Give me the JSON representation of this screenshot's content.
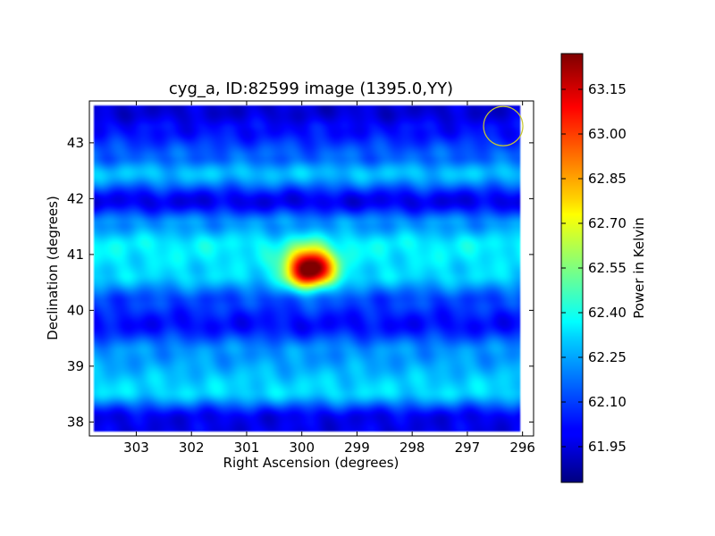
{
  "chart_data": {
    "type": "heatmap",
    "title": "cyg_a, ID:82599 image (1395.0,YY)",
    "xlabel": "Right Ascension (degrees)",
    "ylabel": "Declination (degrees)",
    "x_inverted": true,
    "xlim": [
      303.85,
      295.8
    ],
    "ylim": [
      37.75,
      43.75
    ],
    "x_ticks": [
      303,
      302,
      301,
      300,
      299,
      298,
      297,
      296
    ],
    "y_ticks": [
      38,
      39,
      40,
      41,
      42,
      43
    ],
    "x_tick_labels": [
      "303",
      "302",
      "301",
      "300",
      "299",
      "298",
      "297",
      "296"
    ],
    "y_tick_labels": [
      "38",
      "39",
      "40",
      "41",
      "42",
      "43"
    ],
    "colormap": "jet",
    "colorbar": {
      "label": "Power in Kelvin",
      "range": [
        61.83,
        63.27
      ],
      "ticks": [
        61.95,
        62.1,
        62.25,
        62.4,
        62.55,
        62.7,
        62.85,
        63.0,
        63.15
      ],
      "tick_labels": [
        "61.95",
        "62.10",
        "62.25",
        "62.40",
        "62.55",
        "62.70",
        "62.85",
        "63.00",
        "63.15"
      ]
    },
    "coverage": {
      "ra_range": [
        296.05,
        303.75
      ],
      "dec_range": [
        37.85,
        43.65
      ]
    },
    "background_level": 62.18,
    "horizontal_bands": [
      {
        "dec": 43.55,
        "value": 61.95
      },
      {
        "dec": 43.25,
        "value": 62.02
      },
      {
        "dec": 42.75,
        "value": 62.15
      },
      {
        "dec": 42.45,
        "value": 62.28
      },
      {
        "dec": 41.95,
        "value": 61.98
      },
      {
        "dec": 41.55,
        "value": 62.22
      },
      {
        "dec": 41.15,
        "value": 62.36
      },
      {
        "dec": 40.65,
        "value": 62.32
      },
      {
        "dec": 40.15,
        "value": 62.1
      },
      {
        "dec": 39.75,
        "value": 62.02
      },
      {
        "dec": 39.25,
        "value": 62.22
      },
      {
        "dec": 38.55,
        "value": 62.32
      },
      {
        "dec": 38.05,
        "value": 61.98
      }
    ],
    "sources": [
      {
        "ra": 299.85,
        "dec": 40.75,
        "peak": 63.27
      }
    ],
    "beam_marker": {
      "ra": 296.35,
      "dec": 43.3,
      "color": "#c8c832"
    },
    "grid": false
  }
}
